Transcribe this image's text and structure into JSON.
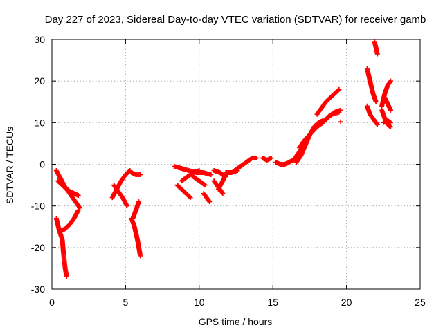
{
  "chart_data": {
    "type": "scatter",
    "title": "Day 227 of 2023, Sidereal Day-to-day VTEC variation (SDTVAR) for receiver gamb",
    "xlabel": "GPS time / hours",
    "ylabel": "SDTVAR / TECUs",
    "xlim": [
      0,
      25
    ],
    "ylim": [
      -30,
      30
    ],
    "x_ticks": [
      "0",
      "5",
      "10",
      "15",
      "20",
      "25"
    ],
    "y_ticks": [
      "30",
      "20",
      "10",
      "0",
      "-10",
      "-20",
      "-30"
    ],
    "grid": true,
    "marker": "plus",
    "color": "#ff0000",
    "segments": [
      [
        [
          0.3,
          -13
        ],
        [
          0.5,
          -16
        ],
        [
          0.7,
          -18
        ],
        [
          0.8,
          -22
        ],
        [
          0.9,
          -25
        ],
        [
          1.0,
          -27
        ]
      ],
      [
        [
          0.3,
          -1.5
        ],
        [
          0.6,
          -3.5
        ],
        [
          0.9,
          -5.5
        ],
        [
          1.2,
          -6.5
        ],
        [
          1.5,
          -7
        ],
        [
          1.8,
          -7.5
        ]
      ],
      [
        [
          0.4,
          -4
        ],
        [
          0.7,
          -5
        ],
        [
          1.0,
          -6
        ],
        [
          1.3,
          -7.5
        ],
        [
          1.6,
          -9
        ],
        [
          1.9,
          -10.5
        ]
      ],
      [
        [
          0.6,
          -16
        ],
        [
          0.9,
          -15.5
        ],
        [
          1.2,
          -14.5
        ],
        [
          1.5,
          -13
        ],
        [
          1.8,
          -11
        ]
      ],
      [
        [
          4.1,
          -8
        ],
        [
          4.4,
          -6
        ],
        [
          4.7,
          -4
        ],
        [
          5.0,
          -2.5
        ],
        [
          5.3,
          -1.5
        ]
      ],
      [
        [
          4.2,
          -5
        ],
        [
          4.5,
          -6.5
        ],
        [
          4.8,
          -8
        ],
        [
          5.1,
          -10
        ]
      ],
      [
        [
          5.4,
          -2
        ],
        [
          5.7,
          -2.5
        ],
        [
          6.0,
          -2.5
        ]
      ],
      [
        [
          5.4,
          -13
        ],
        [
          5.6,
          -15
        ],
        [
          5.8,
          -18
        ],
        [
          5.9,
          -20
        ],
        [
          6.0,
          -22
        ]
      ],
      [
        [
          5.5,
          -13
        ],
        [
          5.7,
          -11
        ],
        [
          5.9,
          -9
        ]
      ],
      [
        [
          8.3,
          -0.5
        ],
        [
          8.8,
          -1
        ],
        [
          9.3,
          -1.5
        ],
        [
          9.8,
          -2
        ],
        [
          10.3,
          -2
        ],
        [
          10.8,
          -2.5
        ]
      ],
      [
        [
          8.5,
          -5
        ],
        [
          8.8,
          -6
        ],
        [
          9.1,
          -7
        ],
        [
          9.4,
          -8
        ]
      ],
      [
        [
          8.8,
          -4
        ],
        [
          9.2,
          -3
        ],
        [
          9.6,
          -2
        ],
        [
          10.0,
          -1.5
        ]
      ],
      [
        [
          9.6,
          -3
        ],
        [
          10.0,
          -4
        ],
        [
          10.4,
          -5
        ]
      ],
      [
        [
          10.3,
          -7
        ],
        [
          10.5,
          -8
        ],
        [
          10.7,
          -9
        ]
      ],
      [
        [
          11.0,
          -1.5
        ],
        [
          11.4,
          -2
        ],
        [
          11.8,
          -3
        ]
      ],
      [
        [
          11.0,
          -4
        ],
        [
          11.3,
          -5.5
        ],
        [
          11.6,
          -7
        ]
      ],
      [
        [
          11.3,
          -6
        ],
        [
          11.6,
          -4
        ],
        [
          11.8,
          -2.5
        ]
      ],
      [
        [
          11.8,
          -2
        ],
        [
          12.2,
          -2
        ],
        [
          12.6,
          -1.5
        ]
      ],
      [
        [
          12.4,
          -1.5
        ],
        [
          12.8,
          -0.5
        ],
        [
          13.2,
          0.5
        ],
        [
          13.6,
          1.5
        ],
        [
          13.9,
          1.5
        ]
      ],
      [
        [
          14.3,
          1.5
        ],
        [
          14.6,
          1
        ],
        [
          14.9,
          1.5
        ]
      ],
      [
        [
          15.2,
          0.5
        ],
        [
          15.5,
          0
        ],
        [
          15.8,
          0
        ],
        [
          16.1,
          0.5
        ],
        [
          16.4,
          1
        ],
        [
          16.7,
          2.5
        ],
        [
          17.0,
          4
        ],
        [
          17.3,
          5.5
        ]
      ],
      [
        [
          16.6,
          0.5
        ],
        [
          16.9,
          2
        ],
        [
          17.2,
          4.5
        ],
        [
          17.5,
          7
        ],
        [
          17.8,
          9
        ],
        [
          18.1,
          10
        ],
        [
          18.4,
          10.5
        ]
      ],
      [
        [
          16.8,
          4
        ],
        [
          17.2,
          6
        ],
        [
          17.6,
          7.5
        ],
        [
          18.0,
          9
        ],
        [
          18.4,
          10
        ],
        [
          18.8,
          11.5
        ],
        [
          19.2,
          12.5
        ],
        [
          19.6,
          13
        ]
      ],
      [
        [
          18.0,
          12
        ],
        [
          18.3,
          13.5
        ],
        [
          18.6,
          15
        ],
        [
          18.9,
          16
        ],
        [
          19.2,
          17
        ],
        [
          19.5,
          18
        ]
      ],
      [
        [
          18.5,
          10.5
        ],
        [
          19.0,
          12
        ],
        [
          19.5,
          12.5
        ]
      ],
      [
        [
          19.6,
          10.2
        ]
      ],
      [
        [
          21.4,
          23
        ],
        [
          21.6,
          20
        ],
        [
          21.8,
          17
        ],
        [
          22.0,
          15
        ]
      ],
      [
        [
          21.4,
          14
        ],
        [
          21.6,
          12
        ],
        [
          21.9,
          10.5
        ],
        [
          22.1,
          9.5
        ]
      ],
      [
        [
          21.9,
          29.5
        ],
        [
          22.0,
          28
        ],
        [
          22.1,
          26.5
        ]
      ],
      [
        [
          22.4,
          14
        ],
        [
          22.6,
          17
        ],
        [
          22.8,
          19
        ],
        [
          23.0,
          20
        ]
      ],
      [
        [
          22.6,
          16
        ],
        [
          22.8,
          14.5
        ],
        [
          23.0,
          13
        ]
      ],
      [
        [
          22.4,
          13
        ],
        [
          22.6,
          11
        ],
        [
          22.8,
          9.5
        ],
        [
          23.0,
          9
        ]
      ],
      [
        [
          22.5,
          10
        ],
        [
          22.8,
          10.5
        ],
        [
          23.0,
          10
        ]
      ]
    ]
  }
}
